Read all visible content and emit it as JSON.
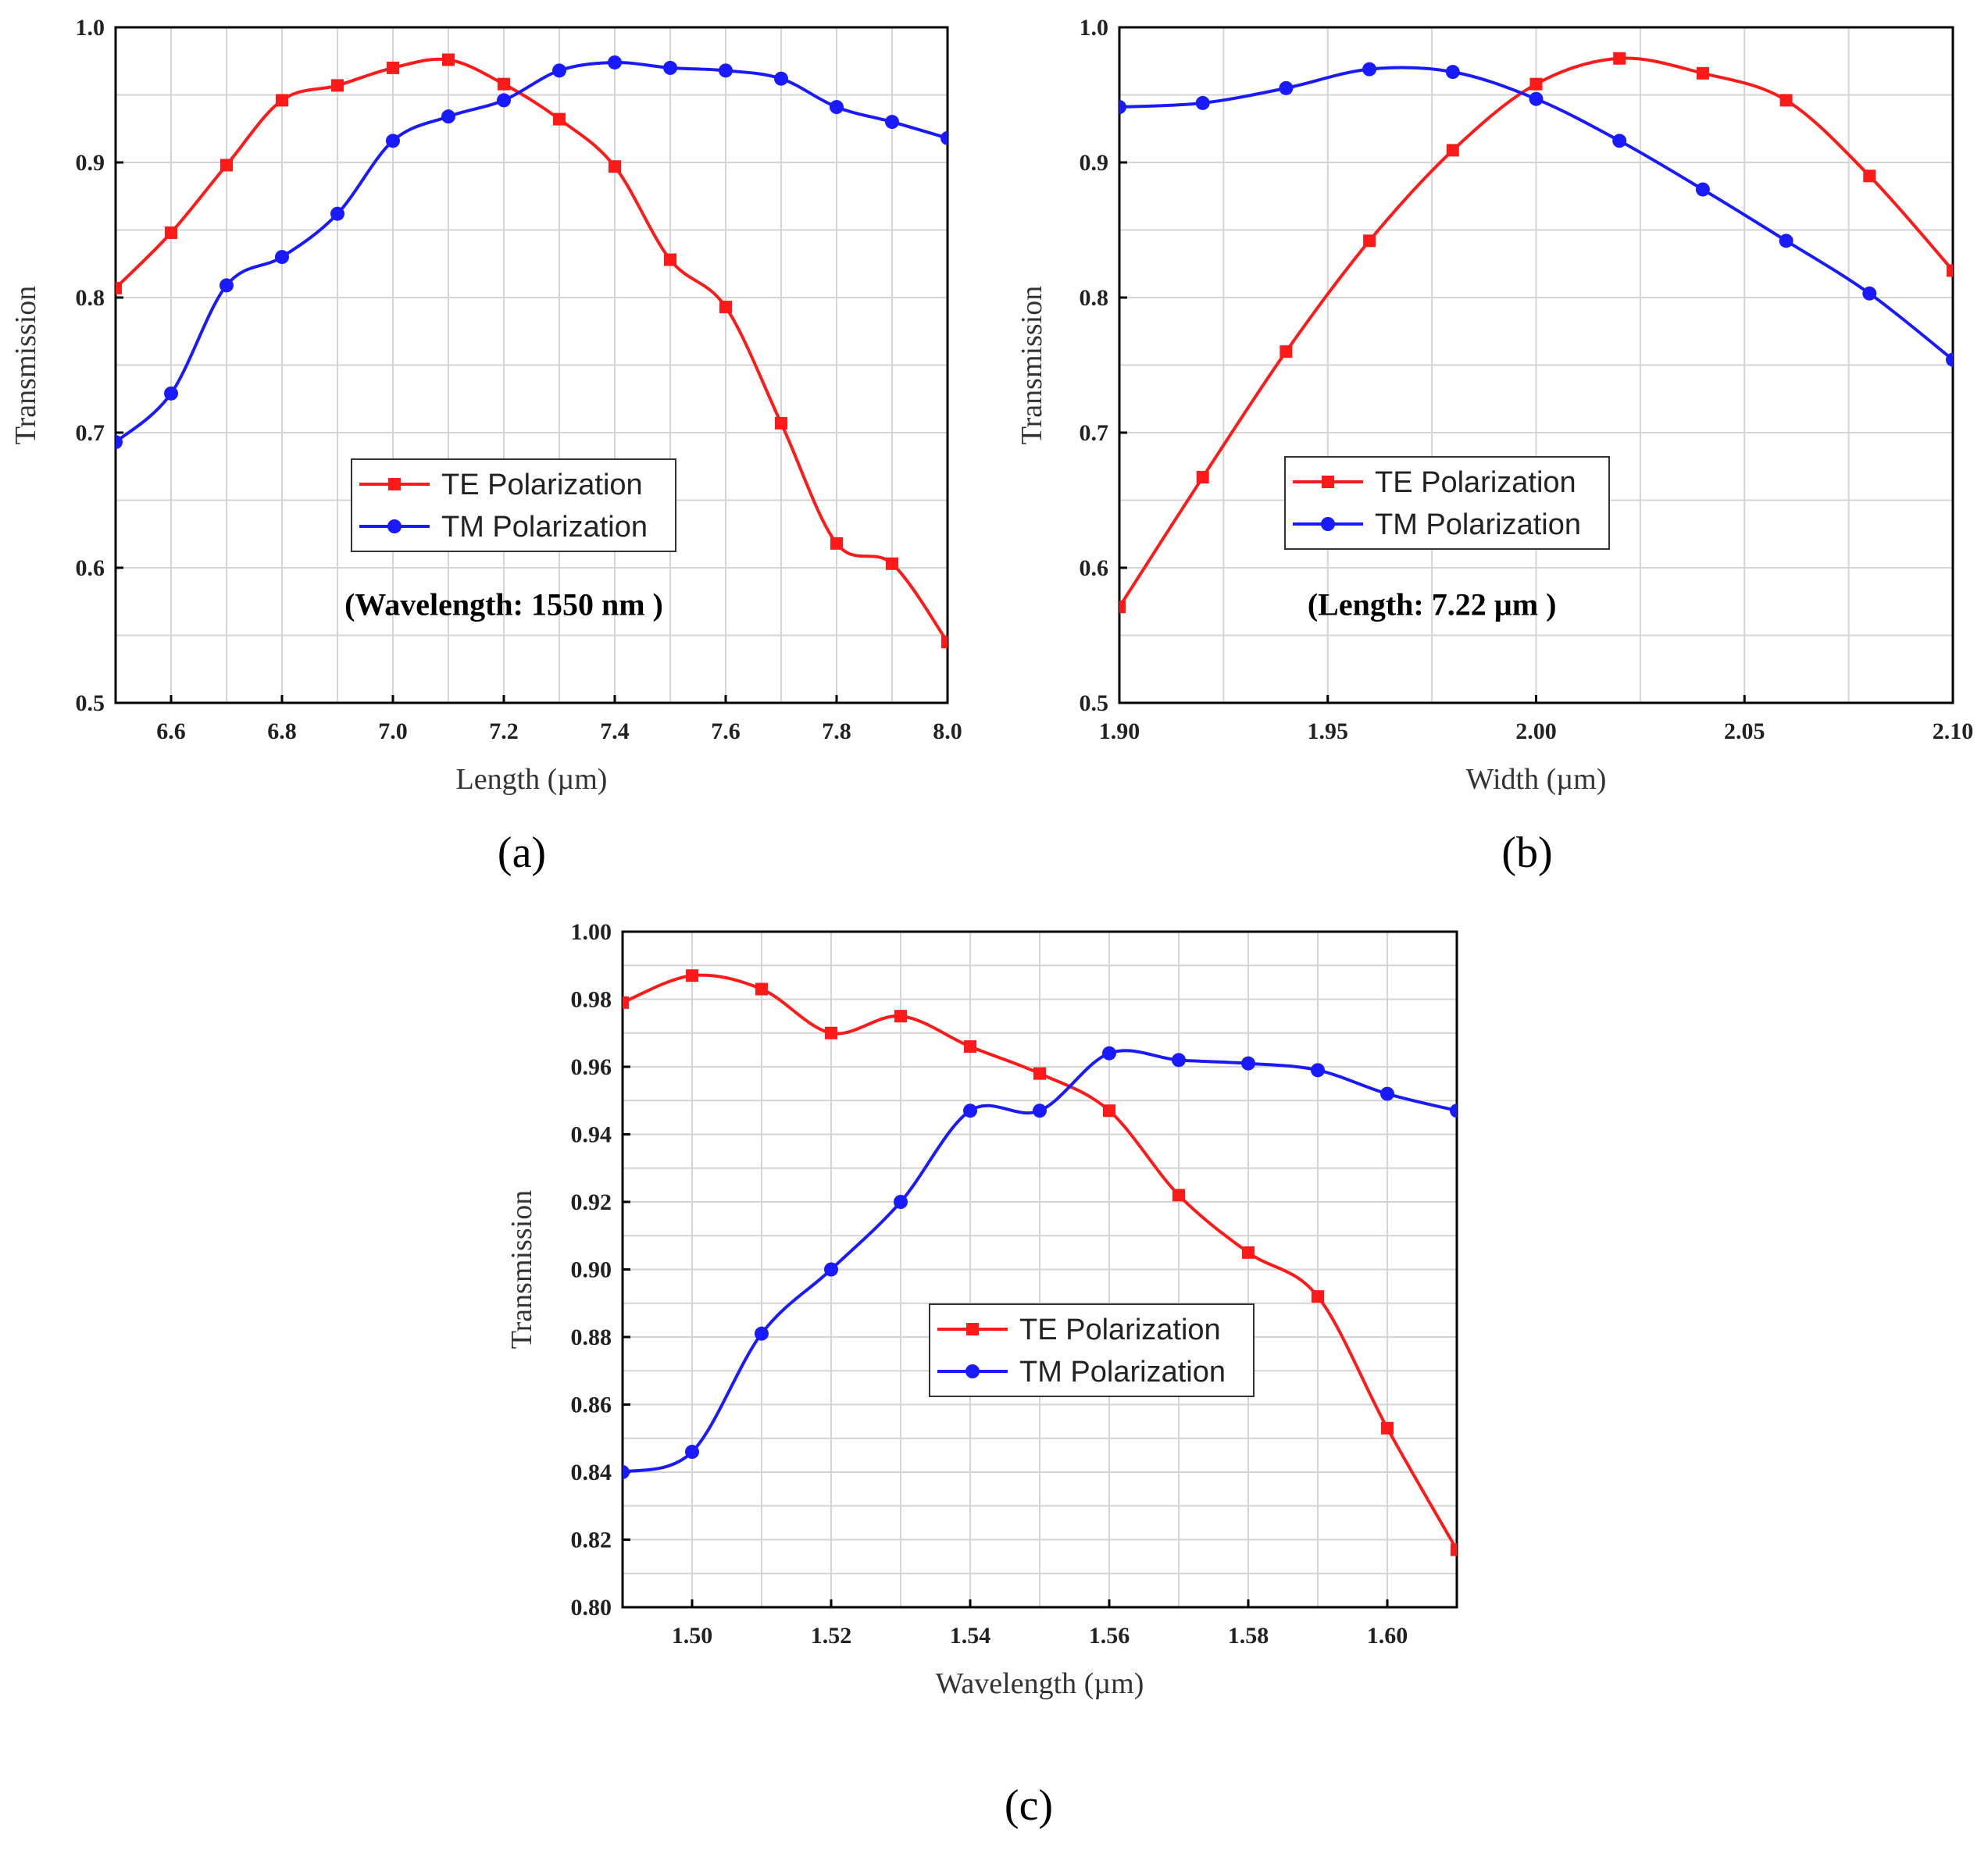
{
  "chart_data": [
    {
      "type": "line",
      "panel_label": "(a)",
      "xlabel": "Length (µm)",
      "ylabel": "Transmission",
      "xlim": [
        6.5,
        8.0
      ],
      "ylim": [
        0.5,
        1.0
      ],
      "xticks": [
        6.6,
        6.8,
        7.0,
        7.2,
        7.4,
        7.6,
        7.8,
        8.0
      ],
      "xtick_labels": [
        "6.6",
        "6.8",
        "7.0",
        "7.2",
        "7.4",
        "7.6",
        "7.8",
        "8.0"
      ],
      "yticks": [
        0.5,
        0.6,
        0.7,
        0.8,
        0.9,
        1.0
      ],
      "ytick_labels": [
        "0.5",
        "0.6",
        "0.7",
        "0.8",
        "0.9",
        "1.0"
      ],
      "x_grid_step": 0.1,
      "y_grid_step": 0.05,
      "annotation": "(Wavelength: 1550 nm )",
      "annotation_pos": [
        7.2,
        0.565
      ],
      "legend_position": "center",
      "x": [
        6.5,
        6.6,
        6.7,
        6.8,
        6.9,
        7.0,
        7.1,
        7.2,
        7.3,
        7.4,
        7.5,
        7.6,
        7.7,
        7.8,
        7.9,
        8.0
      ],
      "series": [
        {
          "name": "TE Polarization",
          "color": "#ff1a1a",
          "marker": "square",
          "values": [
            0.807,
            0.848,
            0.898,
            0.946,
            0.957,
            0.97,
            0.976,
            0.958,
            0.932,
            0.897,
            0.828,
            0.793,
            0.707,
            0.618,
            0.603,
            0.545
          ]
        },
        {
          "name": "TM Polarization",
          "color": "#1a1aff",
          "marker": "circle",
          "values": [
            0.693,
            0.729,
            0.809,
            0.83,
            0.862,
            0.916,
            0.934,
            0.946,
            0.968,
            0.974,
            0.97,
            0.968,
            0.962,
            0.941,
            0.93,
            0.918
          ]
        }
      ]
    },
    {
      "type": "line",
      "panel_label": "(b)",
      "xlabel": "Width (µm)",
      "ylabel": "Transmission",
      "xlim": [
        1.9,
        2.1
      ],
      "ylim": [
        0.5,
        1.0
      ],
      "xticks": [
        1.9,
        1.95,
        2.0,
        2.05,
        2.1
      ],
      "xtick_labels": [
        "1.90",
        "1.95",
        "2.00",
        "2.05",
        "2.10"
      ],
      "yticks": [
        0.5,
        0.6,
        0.7,
        0.8,
        0.9,
        1.0
      ],
      "ytick_labels": [
        "0.5",
        "0.6",
        "0.7",
        "0.8",
        "0.9",
        "1.0"
      ],
      "x_grid_step": 0.025,
      "y_grid_step": 0.05,
      "annotation": "(Length: 7.22 µm )",
      "annotation_pos": [
        1.975,
        0.565
      ],
      "legend_position": "center",
      "x": [
        1.9,
        1.92,
        1.94,
        1.96,
        1.98,
        2.0,
        2.02,
        2.04,
        2.06,
        2.08,
        2.1
      ],
      "series": [
        {
          "name": "TE Polarization",
          "color": "#ff1a1a",
          "marker": "square",
          "values": [
            0.571,
            0.667,
            0.76,
            0.842,
            0.909,
            0.958,
            0.977,
            0.966,
            0.946,
            0.89,
            0.82
          ]
        },
        {
          "name": "TM Polarization",
          "color": "#1a1aff",
          "marker": "circle",
          "values": [
            0.941,
            0.944,
            0.955,
            0.969,
            0.967,
            0.947,
            0.916,
            0.88,
            0.842,
            0.803,
            0.754
          ]
        }
      ]
    },
    {
      "type": "line",
      "panel_label": "(c)",
      "xlabel": "Wavelength (µm)",
      "ylabel": "Transmission",
      "xlim": [
        1.49,
        1.61
      ],
      "ylim": [
        0.8,
        1.0
      ],
      "xticks": [
        1.5,
        1.52,
        1.54,
        1.56,
        1.58,
        1.6
      ],
      "xtick_labels": [
        "1.50",
        "1.52",
        "1.54",
        "1.56",
        "1.58",
        "1.60"
      ],
      "yticks": [
        0.8,
        0.82,
        0.84,
        0.86,
        0.88,
        0.9,
        0.92,
        0.94,
        0.96,
        0.98,
        1.0
      ],
      "ytick_labels": [
        "0.80",
        "0.82",
        "0.84",
        "0.86",
        "0.88",
        "0.90",
        "0.92",
        "0.94",
        "0.96",
        "0.98",
        "1.00"
      ],
      "x_grid_step": 0.01,
      "y_grid_step": 0.01,
      "annotation": "",
      "legend_position": "center",
      "x": [
        1.49,
        1.5,
        1.51,
        1.52,
        1.53,
        1.54,
        1.55,
        1.56,
        1.57,
        1.58,
        1.59,
        1.6,
        1.61
      ],
      "series": [
        {
          "name": "TE Polarization",
          "color": "#ff1a1a",
          "marker": "square",
          "values": [
            0.979,
            0.987,
            0.983,
            0.97,
            0.975,
            0.966,
            0.958,
            0.947,
            0.922,
            0.905,
            0.892,
            0.853,
            0.817
          ]
        },
        {
          "name": "TM Polarization",
          "color": "#1a1aff",
          "marker": "circle",
          "values": [
            0.84,
            0.846,
            0.881,
            0.9,
            0.92,
            0.947,
            0.947,
            0.964,
            0.962,
            0.961,
            0.959,
            0.952,
            0.947
          ]
        }
      ]
    }
  ]
}
